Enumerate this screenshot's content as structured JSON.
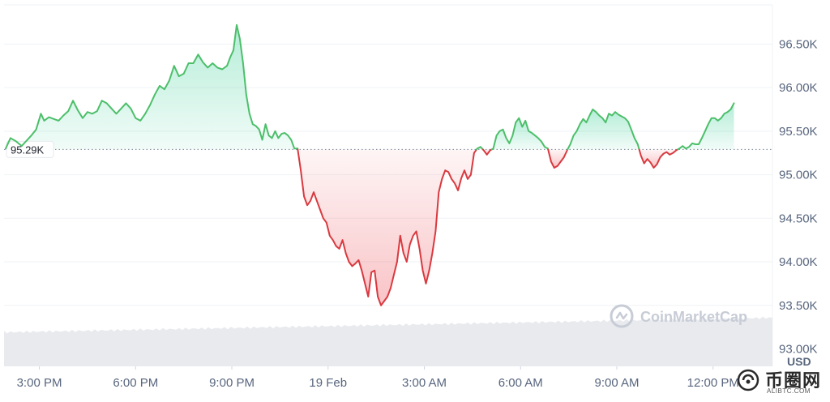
{
  "chart_data": {
    "type": "area",
    "currency_label": "USD",
    "reference": {
      "value": 95290,
      "label": "95.29K"
    },
    "ylim": [
      92800,
      96950
    ],
    "y_ticks": [
      {
        "value": 93000,
        "label": "93.00K"
      },
      {
        "value": 93500,
        "label": "93.50K"
      },
      {
        "value": 94000,
        "label": "94.00K"
      },
      {
        "value": 94500,
        "label": "94.50K"
      },
      {
        "value": 95000,
        "label": "95.00K"
      },
      {
        "value": 95500,
        "label": "95.50K"
      },
      {
        "value": 96000,
        "label": "96.00K"
      },
      {
        "value": 96500,
        "label": "96.50K"
      }
    ],
    "x_ticks": [
      {
        "hour": 15,
        "label": "3:00 PM"
      },
      {
        "hour": 18,
        "label": "6:00 PM"
      },
      {
        "hour": 21,
        "label": "9:00 PM"
      },
      {
        "hour": 24,
        "label": "19 Feb"
      },
      {
        "hour": 27,
        "label": "3:00 AM"
      },
      {
        "hour": 30,
        "label": "6:00 AM"
      },
      {
        "hour": 33,
        "label": "9:00 AM"
      },
      {
        "hour": 36,
        "label": "12:00 PM"
      }
    ],
    "xlim": [
      13.9,
      37.85
    ],
    "colors": {
      "up": "#16c784",
      "up_line": "#4cbf6a",
      "down": "#ea3943",
      "down_line": "#d9393f",
      "grid": "#eff2f5",
      "volume": "#e8eaee"
    },
    "series": [
      {
        "points": [
          [
            13.95,
            95300
          ],
          [
            14.1,
            95420
          ],
          [
            14.25,
            95390
          ],
          [
            14.45,
            95330
          ],
          [
            14.6,
            95390
          ],
          [
            14.75,
            95450
          ],
          [
            14.9,
            95520
          ],
          [
            15.05,
            95700
          ],
          [
            15.15,
            95620
          ],
          [
            15.3,
            95660
          ],
          [
            15.45,
            95640
          ],
          [
            15.6,
            95620
          ],
          [
            15.75,
            95680
          ],
          [
            15.9,
            95730
          ],
          [
            16.05,
            95850
          ],
          [
            16.2,
            95740
          ],
          [
            16.35,
            95650
          ],
          [
            16.5,
            95720
          ],
          [
            16.65,
            95700
          ],
          [
            16.8,
            95730
          ],
          [
            16.95,
            95850
          ],
          [
            17.1,
            95820
          ],
          [
            17.25,
            95760
          ],
          [
            17.4,
            95700
          ],
          [
            17.55,
            95760
          ],
          [
            17.7,
            95820
          ],
          [
            17.85,
            95760
          ],
          [
            18.0,
            95650
          ],
          [
            18.15,
            95620
          ],
          [
            18.3,
            95700
          ],
          [
            18.45,
            95800
          ],
          [
            18.6,
            95920
          ],
          [
            18.75,
            96020
          ],
          [
            18.9,
            95980
          ],
          [
            19.05,
            96080
          ],
          [
            19.2,
            96250
          ],
          [
            19.35,
            96130
          ],
          [
            19.5,
            96160
          ],
          [
            19.65,
            96280
          ],
          [
            19.8,
            96280
          ],
          [
            19.95,
            96380
          ],
          [
            20.1,
            96290
          ],
          [
            20.25,
            96230
          ],
          [
            20.4,
            96280
          ],
          [
            20.55,
            96230
          ],
          [
            20.7,
            96210
          ],
          [
            20.85,
            96250
          ],
          [
            20.95,
            96350
          ],
          [
            21.05,
            96430
          ],
          [
            21.15,
            96720
          ],
          [
            21.25,
            96560
          ],
          [
            21.35,
            96280
          ],
          [
            21.45,
            95920
          ],
          [
            21.55,
            95700
          ],
          [
            21.65,
            95580
          ],
          [
            21.75,
            95560
          ],
          [
            21.85,
            95520
          ],
          [
            21.95,
            95400
          ],
          [
            22.05,
            95580
          ],
          [
            22.15,
            95450
          ],
          [
            22.25,
            95420
          ],
          [
            22.35,
            95500
          ],
          [
            22.45,
            95420
          ],
          [
            22.55,
            95470
          ],
          [
            22.65,
            95480
          ],
          [
            22.75,
            95450
          ],
          [
            22.85,
            95400
          ],
          [
            22.95,
            95300
          ],
          [
            23.05,
            95300
          ],
          [
            23.15,
            95050
          ],
          [
            23.25,
            94750
          ],
          [
            23.35,
            94650
          ],
          [
            23.45,
            94700
          ],
          [
            23.55,
            94800
          ],
          [
            23.65,
            94700
          ],
          [
            23.75,
            94600
          ],
          [
            23.85,
            94500
          ],
          [
            23.95,
            94450
          ],
          [
            24.05,
            94300
          ],
          [
            24.15,
            94250
          ],
          [
            24.25,
            94180
          ],
          [
            24.35,
            94150
          ],
          [
            24.45,
            94250
          ],
          [
            24.55,
            94100
          ],
          [
            24.65,
            94000
          ],
          [
            24.75,
            93950
          ],
          [
            24.85,
            93980
          ],
          [
            24.95,
            94020
          ],
          [
            25.05,
            93900
          ],
          [
            25.15,
            93750
          ],
          [
            25.25,
            93600
          ],
          [
            25.35,
            93880
          ],
          [
            25.45,
            93900
          ],
          [
            25.55,
            93600
          ],
          [
            25.65,
            93500
          ],
          [
            25.75,
            93550
          ],
          [
            25.85,
            93600
          ],
          [
            25.95,
            93700
          ],
          [
            26.05,
            93850
          ],
          [
            26.15,
            94000
          ],
          [
            26.25,
            94300
          ],
          [
            26.35,
            94100
          ],
          [
            26.45,
            94000
          ],
          [
            26.55,
            94200
          ],
          [
            26.65,
            94300
          ],
          [
            26.75,
            94350
          ],
          [
            26.85,
            94150
          ],
          [
            26.95,
            93900
          ],
          [
            27.05,
            93750
          ],
          [
            27.15,
            93900
          ],
          [
            27.25,
            94100
          ],
          [
            27.35,
            94350
          ],
          [
            27.45,
            94800
          ],
          [
            27.55,
            94950
          ],
          [
            27.65,
            95050
          ],
          [
            27.75,
            95030
          ],
          [
            27.85,
            94950
          ],
          [
            27.95,
            94900
          ],
          [
            28.05,
            94820
          ],
          [
            28.15,
            94960
          ],
          [
            28.25,
            95050
          ],
          [
            28.35,
            94950
          ],
          [
            28.45,
            95000
          ],
          [
            28.55,
            95250
          ],
          [
            28.65,
            95300
          ],
          [
            28.75,
            95320
          ],
          [
            28.85,
            95280
          ],
          [
            28.95,
            95230
          ],
          [
            29.05,
            95280
          ],
          [
            29.15,
            95300
          ],
          [
            29.25,
            95450
          ],
          [
            29.35,
            95500
          ],
          [
            29.45,
            95520
          ],
          [
            29.55,
            95420
          ],
          [
            29.65,
            95360
          ],
          [
            29.75,
            95450
          ],
          [
            29.85,
            95600
          ],
          [
            29.95,
            95650
          ],
          [
            30.05,
            95550
          ],
          [
            30.15,
            95620
          ],
          [
            30.25,
            95500
          ],
          [
            30.35,
            95480
          ],
          [
            30.45,
            95450
          ],
          [
            30.55,
            95420
          ],
          [
            30.65,
            95380
          ],
          [
            30.75,
            95320
          ],
          [
            30.85,
            95300
          ],
          [
            30.95,
            95150
          ],
          [
            31.05,
            95080
          ],
          [
            31.15,
            95100
          ],
          [
            31.25,
            95150
          ],
          [
            31.35,
            95200
          ],
          [
            31.45,
            95280
          ],
          [
            31.55,
            95350
          ],
          [
            31.65,
            95450
          ],
          [
            31.75,
            95500
          ],
          [
            31.85,
            95580
          ],
          [
            31.95,
            95640
          ],
          [
            32.05,
            95600
          ],
          [
            32.15,
            95680
          ],
          [
            32.25,
            95750
          ],
          [
            32.35,
            95720
          ],
          [
            32.45,
            95680
          ],
          [
            32.55,
            95650
          ],
          [
            32.65,
            95600
          ],
          [
            32.75,
            95700
          ],
          [
            32.85,
            95680
          ],
          [
            32.95,
            95720
          ],
          [
            33.05,
            95690
          ],
          [
            33.15,
            95670
          ],
          [
            33.25,
            95650
          ],
          [
            33.35,
            95610
          ],
          [
            33.45,
            95520
          ],
          [
            33.55,
            95420
          ],
          [
            33.65,
            95350
          ],
          [
            33.75,
            95220
          ],
          [
            33.85,
            95130
          ],
          [
            33.95,
            95180
          ],
          [
            34.05,
            95140
          ],
          [
            34.15,
            95080
          ],
          [
            34.25,
            95120
          ],
          [
            34.35,
            95200
          ],
          [
            34.45,
            95240
          ],
          [
            34.55,
            95260
          ],
          [
            34.65,
            95230
          ],
          [
            34.75,
            95250
          ],
          [
            34.85,
            95280
          ],
          [
            34.95,
            95300
          ],
          [
            35.05,
            95330
          ],
          [
            35.15,
            95300
          ],
          [
            35.25,
            95320
          ],
          [
            35.35,
            95360
          ],
          [
            35.45,
            95350
          ],
          [
            35.55,
            95350
          ],
          [
            35.65,
            95420
          ],
          [
            35.75,
            95500
          ],
          [
            35.85,
            95580
          ],
          [
            35.95,
            95650
          ],
          [
            36.05,
            95650
          ],
          [
            36.15,
            95620
          ],
          [
            36.25,
            95650
          ],
          [
            36.35,
            95700
          ],
          [
            36.45,
            95720
          ],
          [
            36.55,
            95750
          ],
          [
            36.65,
            95820
          ]
        ]
      }
    ],
    "grid": true,
    "watermark": "CoinMarketCap"
  },
  "corner_logo": {
    "name": "币圈网",
    "sub": "ALIBTC.COM"
  }
}
